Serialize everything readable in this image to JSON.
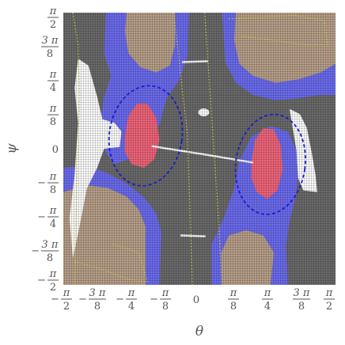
{
  "chart_data": {
    "type": "heatmap",
    "title": "",
    "xlabel": "θ",
    "ylabel": "ψ",
    "xlim": [
      -1.5708,
      1.5708
    ],
    "ylim": [
      -1.5708,
      1.5708
    ],
    "grid": false,
    "x_ticks": [
      {
        "value": -1.5708,
        "sign": "−",
        "num": "π",
        "den": "2"
      },
      {
        "value": -1.1781,
        "sign": "−",
        "num": "3 π",
        "den": "8"
      },
      {
        "value": -0.7854,
        "sign": "−",
        "num": "π",
        "den": "4"
      },
      {
        "value": -0.3927,
        "sign": "−",
        "num": "π",
        "den": "8"
      },
      {
        "value": 0,
        "sign": "",
        "num": "",
        "den": "",
        "plain": "0"
      },
      {
        "value": 0.3927,
        "sign": "",
        "num": "π",
        "den": "8"
      },
      {
        "value": 0.7854,
        "sign": "",
        "num": "π",
        "den": "4"
      },
      {
        "value": 1.1781,
        "sign": "",
        "num": "3 π",
        "den": "8"
      },
      {
        "value": 1.5708,
        "sign": "",
        "num": "π",
        "den": "2"
      }
    ],
    "y_ticks": [
      {
        "value": 1.5708,
        "sign": "",
        "num": "π",
        "den": "2"
      },
      {
        "value": 1.1781,
        "sign": "",
        "num": "3 π",
        "den": "8"
      },
      {
        "value": 0.7854,
        "sign": "",
        "num": "π",
        "den": "4"
      },
      {
        "value": 0.3927,
        "sign": "",
        "num": "π",
        "den": "8"
      },
      {
        "value": 0,
        "sign": "",
        "num": "",
        "den": "",
        "plain": "0"
      },
      {
        "value": -0.3927,
        "sign": "−",
        "num": "π",
        "den": "8"
      },
      {
        "value": -0.7854,
        "sign": "−",
        "num": "π",
        "den": "4"
      },
      {
        "value": -1.1781,
        "sign": "−",
        "num": "3 π",
        "den": "8"
      },
      {
        "value": -1.5708,
        "sign": "−",
        "num": "π",
        "den": "2"
      }
    ],
    "colors": {
      "background": "#6b6b6b",
      "tan": "#b8a08a",
      "blue": "#6c6cf0",
      "red": "#f0657a",
      "white": "#ffffff",
      "ellipse": "#1a1ad0",
      "yellow": "#d6d64a"
    },
    "regions": [
      {
        "name": "tan-top-left",
        "color": "tan",
        "points": [
          [
            -0.84,
            1.5708
          ],
          [
            -0.28,
            1.5708
          ],
          [
            -0.28,
            1.2
          ],
          [
            -0.34,
            0.96
          ],
          [
            -0.5,
            0.88
          ],
          [
            -0.68,
            0.94
          ],
          [
            -0.82,
            1.1
          ],
          [
            -0.86,
            1.35
          ]
        ]
      },
      {
        "name": "tan-top-right",
        "color": "tan",
        "points": [
          [
            0.42,
            1.5708
          ],
          [
            1.5708,
            1.5708
          ],
          [
            1.5708,
            0.98
          ],
          [
            1.4,
            0.88
          ],
          [
            1.14,
            0.8
          ],
          [
            0.88,
            0.76
          ],
          [
            0.62,
            0.84
          ],
          [
            0.46,
            0.98
          ],
          [
            0.4,
            1.25
          ]
        ]
      },
      {
        "name": "tan-bottom-left",
        "color": "tan",
        "points": [
          [
            -1.5708,
            -0.5
          ],
          [
            -1.3,
            -0.42
          ],
          [
            -1.06,
            -0.45
          ],
          [
            -0.84,
            -0.55
          ],
          [
            -0.7,
            -0.7
          ],
          [
            -0.62,
            -0.9
          ],
          [
            -0.62,
            -1.5708
          ],
          [
            -1.5708,
            -1.5708
          ]
        ]
      },
      {
        "name": "tan-bottom-right",
        "color": "tan",
        "points": [
          [
            0.26,
            -1.5708
          ],
          [
            0.82,
            -1.5708
          ],
          [
            0.86,
            -1.2
          ],
          [
            0.74,
            -1.0
          ],
          [
            0.54,
            -0.94
          ],
          [
            0.34,
            -1.0
          ],
          [
            0.25,
            -1.2
          ]
        ]
      },
      {
        "name": "blue-top-left",
        "color": "blue",
        "points": [
          [
            -1.08,
            1.5708
          ],
          [
            -0.84,
            1.5708
          ],
          [
            -0.86,
            1.35
          ],
          [
            -0.82,
            1.1
          ],
          [
            -0.68,
            0.94
          ],
          [
            -0.5,
            0.88
          ],
          [
            -0.34,
            0.96
          ],
          [
            -0.28,
            1.2
          ],
          [
            -0.28,
            1.5708
          ],
          [
            -0.12,
            1.5708
          ],
          [
            -0.14,
            1.05
          ],
          [
            -0.24,
            0.78
          ],
          [
            -0.38,
            0.58
          ],
          [
            -0.46,
            0.28
          ],
          [
            -0.62,
            0.02
          ],
          [
            -0.82,
            -0.12
          ],
          [
            -0.98,
            -0.18
          ],
          [
            -1.08,
            -0.04
          ],
          [
            -1.15,
            0.26
          ],
          [
            -1.1,
            0.6
          ],
          [
            -1.02,
            0.84
          ],
          [
            -1.1,
            1.1
          ]
        ]
      },
      {
        "name": "blue-top-right",
        "color": "blue",
        "points": [
          [
            0.26,
            1.5708
          ],
          [
            0.42,
            1.5708
          ],
          [
            0.4,
            1.25
          ],
          [
            0.46,
            0.98
          ],
          [
            0.62,
            0.84
          ],
          [
            0.88,
            0.76
          ],
          [
            1.14,
            0.8
          ],
          [
            1.4,
            0.88
          ],
          [
            1.5708,
            0.98
          ],
          [
            1.5708,
            0.62
          ],
          [
            1.38,
            0.62
          ],
          [
            1.12,
            0.58
          ],
          [
            0.88,
            0.56
          ],
          [
            0.62,
            0.62
          ],
          [
            0.42,
            0.76
          ],
          [
            0.3,
            1.0
          ]
        ]
      },
      {
        "name": "blue-bottom-left",
        "color": "blue",
        "points": [
          [
            -1.5708,
            -0.22
          ],
          [
            -1.3,
            -0.2
          ],
          [
            -1.06,
            -0.28
          ],
          [
            -0.84,
            -0.4
          ],
          [
            -0.64,
            -0.56
          ],
          [
            -0.5,
            -0.74
          ],
          [
            -0.44,
            -0.96
          ],
          [
            -0.46,
            -1.5708
          ],
          [
            -0.62,
            -1.5708
          ],
          [
            -0.62,
            -0.9
          ],
          [
            -0.7,
            -0.7
          ],
          [
            -0.84,
            -0.55
          ],
          [
            -1.06,
            -0.45
          ],
          [
            -1.3,
            -0.42
          ],
          [
            -1.5708,
            -0.5
          ]
        ]
      },
      {
        "name": "blue-bottom-right",
        "color": "blue",
        "points": [
          [
            0.14,
            -1.5708
          ],
          [
            0.26,
            -1.5708
          ],
          [
            0.25,
            -1.2
          ],
          [
            0.34,
            -1.0
          ],
          [
            0.54,
            -0.94
          ],
          [
            0.74,
            -1.0
          ],
          [
            0.86,
            -1.2
          ],
          [
            0.82,
            -1.5708
          ],
          [
            1.02,
            -1.5708
          ],
          [
            1.0,
            -1.12
          ],
          [
            1.04,
            -0.84
          ],
          [
            1.1,
            -0.6
          ],
          [
            1.14,
            -0.34
          ],
          [
            1.12,
            -0.02
          ],
          [
            1.02,
            0.2
          ],
          [
            0.82,
            0.26
          ],
          [
            0.6,
            0.14
          ],
          [
            0.46,
            -0.14
          ],
          [
            0.4,
            -0.46
          ],
          [
            0.28,
            -0.8
          ],
          [
            0.14,
            -1.1
          ]
        ]
      },
      {
        "name": "red-left",
        "color": "red",
        "points": [
          [
            -0.86,
            0.14
          ],
          [
            -0.82,
            0.38
          ],
          [
            -0.72,
            0.52
          ],
          [
            -0.6,
            0.52
          ],
          [
            -0.5,
            0.36
          ],
          [
            -0.46,
            0.1
          ],
          [
            -0.52,
            -0.12
          ],
          [
            -0.64,
            -0.22
          ],
          [
            -0.78,
            -0.18
          ],
          [
            -0.86,
            -0.04
          ]
        ]
      },
      {
        "name": "red-right",
        "color": "red",
        "points": [
          [
            0.6,
            -0.14
          ],
          [
            0.64,
            0.1
          ],
          [
            0.74,
            0.24
          ],
          [
            0.86,
            0.22
          ],
          [
            0.94,
            0.04
          ],
          [
            0.96,
            -0.24
          ],
          [
            0.9,
            -0.48
          ],
          [
            0.78,
            -0.58
          ],
          [
            0.66,
            -0.5
          ],
          [
            0.6,
            -0.34
          ]
        ]
      },
      {
        "name": "white-left",
        "color": "white",
        "points": [
          [
            -1.4,
            1.04
          ],
          [
            -1.28,
            0.96
          ],
          [
            -1.18,
            0.6
          ],
          [
            -1.12,
            0.34
          ],
          [
            -0.98,
            0.3
          ],
          [
            -0.9,
            0.2
          ],
          [
            -0.92,
            0.02
          ],
          [
            -1.1,
            0.0
          ],
          [
            -1.18,
            -0.22
          ],
          [
            -1.3,
            -0.46
          ],
          [
            -1.4,
            -0.98
          ],
          [
            -1.46,
            -1.26
          ],
          [
            -1.5,
            -0.8
          ],
          [
            -1.44,
            -0.3
          ],
          [
            -1.4,
            0.3
          ],
          [
            -1.44,
            0.7
          ]
        ]
      },
      {
        "name": "white-right",
        "color": "white",
        "points": [
          [
            1.04,
            0.46
          ],
          [
            1.16,
            0.4
          ],
          [
            1.24,
            0.24
          ],
          [
            1.3,
            -0.06
          ],
          [
            1.34,
            -0.3
          ],
          [
            1.36,
            -0.5
          ],
          [
            1.2,
            -0.48
          ],
          [
            1.14,
            -0.34
          ],
          [
            1.12,
            -0.02
          ],
          [
            1.08,
            0.22
          ]
        ]
      }
    ],
    "curves": [
      {
        "name": "white-line-middle",
        "color": "white",
        "points": [
          [
            -0.55,
            0.03
          ],
          [
            0.15,
            -0.08
          ],
          [
            0.62,
            -0.16
          ]
        ]
      },
      {
        "name": "white-line-top",
        "color": "white",
        "points": [
          [
            -0.2,
            1.0
          ],
          [
            0.1,
            1.01
          ]
        ]
      },
      {
        "name": "white-line-bottom",
        "color": "white",
        "points": [
          [
            -0.22,
            -1.0
          ],
          [
            0.07,
            -1.01
          ]
        ]
      }
    ],
    "white_dot": {
      "x": 0.05,
      "y": 0.42
    },
    "ellipses": [
      {
        "name": "dashed-ellipse-left",
        "cx": -0.62,
        "cy": 0.15,
        "rx": 0.42,
        "ry": 0.58,
        "angle": 8
      },
      {
        "name": "dashed-ellipse-right",
        "cx": 0.82,
        "cy": -0.18,
        "rx": 0.4,
        "ry": 0.58,
        "angle": 8
      }
    ],
    "yellow_contours": [
      {
        "name": "yellow-contour-left",
        "points": [
          [
            -1.46,
            1.5708
          ],
          [
            -1.4,
            1.2
          ],
          [
            -1.38,
            0.6
          ],
          [
            -1.4,
            0.0
          ],
          [
            -1.42,
            -0.6
          ],
          [
            -1.44,
            -1.5708
          ]
        ]
      },
      {
        "name": "yellow-contour-inner-left",
        "points": [
          [
            -0.3,
            1.5708
          ],
          [
            -0.24,
            1.1
          ],
          [
            -0.2,
            0.7
          ],
          [
            -0.14,
            0.2
          ],
          [
            -0.12,
            -0.4
          ],
          [
            -0.1,
            -1.0
          ],
          [
            -0.08,
            -1.5708
          ]
        ]
      },
      {
        "name": "yellow-contour-inner-right",
        "points": [
          [
            0.06,
            1.5708
          ],
          [
            0.1,
            1.0
          ],
          [
            0.14,
            0.4
          ],
          [
            0.18,
            -0.2
          ],
          [
            0.22,
            -0.8
          ],
          [
            0.26,
            -1.5708
          ]
        ]
      },
      {
        "name": "yellow-contour-top-right",
        "points": [
          [
            0.34,
            1.5
          ],
          [
            0.7,
            1.52
          ],
          [
            1.1,
            1.54
          ],
          [
            1.44,
            1.48
          ],
          [
            1.48,
            1.2
          ],
          [
            1.2,
            1.2
          ],
          [
            0.8,
            1.26
          ],
          [
            0.48,
            1.3
          ]
        ]
      },
      {
        "name": "yellow-contour-bottom-left",
        "points": [
          [
            -1.44,
            -1.3
          ],
          [
            -1.1,
            -1.4
          ],
          [
            -0.84,
            -1.5
          ],
          [
            -0.6,
            -1.54
          ],
          [
            -0.7,
            -1.2
          ],
          [
            -1.0,
            -1.1
          ]
        ]
      }
    ]
  }
}
